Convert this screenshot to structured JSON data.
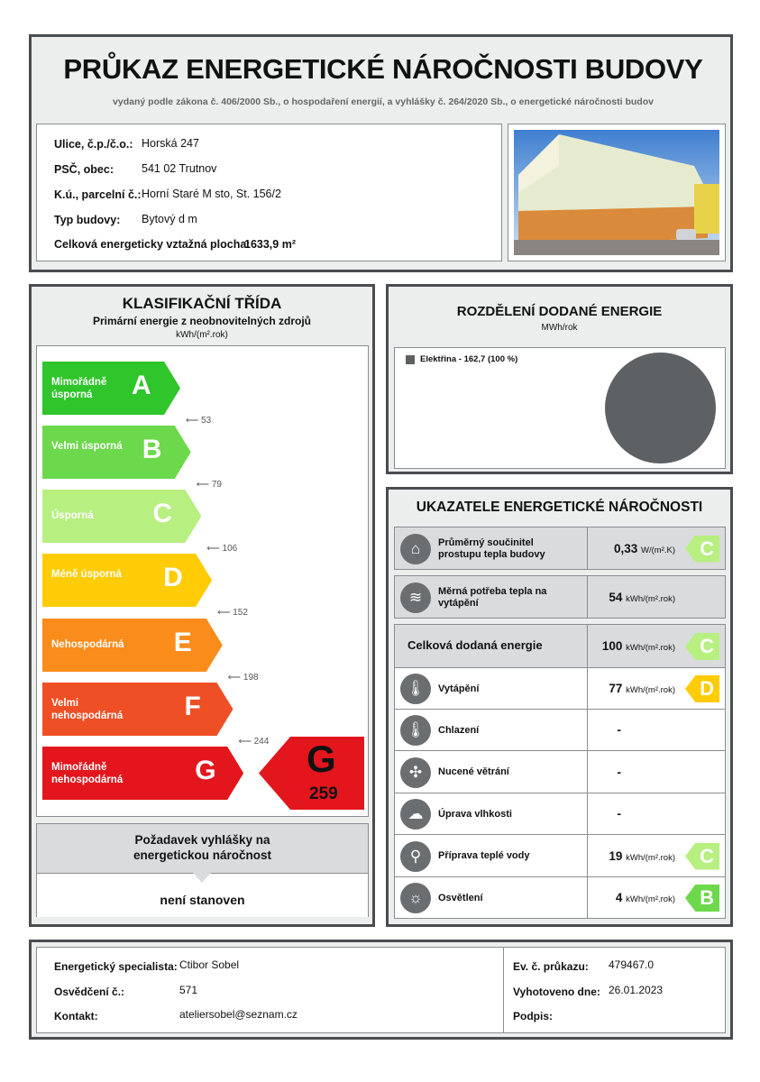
{
  "header": {
    "title": "PRŮKAZ ENERGETICKÉ NÁROČNOSTI BUDOVY",
    "subtitle": "vydaný podle zákona č. 406/2000 Sb., o hospodaření energií, a vyhlášky č. 264/2020 Sb., o energetické náročnosti budov"
  },
  "info": [
    {
      "label": "Ulice, č.p./č.o.:",
      "value": "Horská 247"
    },
    {
      "label": "PSČ, obec:",
      "value": "541 02 Trutnov"
    },
    {
      "label": "K.ú., parcelní č.:",
      "value": "Horní Staré M  sto, St. 156/2"
    },
    {
      "label": "Typ budovy:",
      "value": "Bytový d  m"
    }
  ],
  "area": {
    "label": "Celková energeticky vztažná plocha:",
    "value": "1633,9 m²"
  },
  "classification": {
    "title": "KLASIFIKAČNÍ TŘÍDA",
    "subtitle": "Primární energie z neobnovitelných zdrojů",
    "unit": "kWh/(m².rok)",
    "classes": [
      {
        "letter": "A",
        "label": "Mimořádně úsporná",
        "color": "#2fc52b",
        "threshold": "53"
      },
      {
        "letter": "B",
        "label": "Velmi úsporná",
        "color": "#6cd84b",
        "threshold": "79"
      },
      {
        "letter": "C",
        "label": "Úsporná",
        "color": "#b7ef80",
        "threshold": "106"
      },
      {
        "letter": "D",
        "label": "Méně úsporná",
        "color": "#ffcc05",
        "threshold": "152"
      },
      {
        "letter": "E",
        "label": "Nehospodárná",
        "color": "#fa8c1c",
        "threshold": "198"
      },
      {
        "letter": "F",
        "label": "Velmi nehospodárná",
        "color": "#ef4f25",
        "threshold": "244"
      },
      {
        "letter": "G",
        "label": "Mimořádně nehospodárná",
        "color": "#e3161d"
      }
    ],
    "result": {
      "letter": "G",
      "value": "259"
    }
  },
  "requirement": {
    "title": "Požadavek vyhlášky na energetickou náročnost",
    "value": "není stanoven"
  },
  "distribution": {
    "title": "ROZDĚLENÍ DODANÉ ENERGIE",
    "unit": "MWh/rok",
    "legend": "Elektřina - 162,7 (100 %)",
    "color": "#5e6163"
  },
  "indicators": {
    "title": "UKAZATELE ENERGETICKÉ NÁROČNOSTI",
    "rows": [
      {
        "icon": "house-icon",
        "label": "Průměrný součinitel prostupu tepla budovy",
        "value": "0,33",
        "unit": "W/(m².K)",
        "class": "C",
        "color": "#b7ef80"
      },
      {
        "icon": "heat-thermometer-icon",
        "label": "Měrná potřeba tepla na vytápění",
        "value": "54",
        "unit": "kWh/(m².rok)"
      },
      {
        "label": "Celková dodaná energie",
        "value": "100",
        "unit": "kWh/(m².rok)",
        "class": "C",
        "color": "#b7ef80"
      },
      {
        "icon": "heating-icon",
        "label": "Vytápění",
        "value": "77",
        "unit": "kWh/(m².rok)",
        "class": "D",
        "color": "#ffcc05"
      },
      {
        "icon": "cooling-icon",
        "label": "Chlazení",
        "value": "-"
      },
      {
        "icon": "fan-icon",
        "label": "Nucené větrání",
        "value": "-"
      },
      {
        "icon": "humidity-icon",
        "label": "Úprava vlhkosti",
        "value": "-"
      },
      {
        "icon": "tap-icon",
        "label": "Příprava teplé vody",
        "value": "19",
        "unit": "kWh/(m².rok)",
        "class": "C",
        "color": "#b7ef80"
      },
      {
        "icon": "bulb-icon",
        "label": "Osvětlení",
        "value": "4",
        "unit": "kWh/(m².rok)",
        "class": "B",
        "color": "#6cd84b"
      }
    ]
  },
  "footer": {
    "specialist_label": "Energetický specialista:",
    "specialist": "Ctibor Sobel",
    "cert_label": "Osvědčení č.:",
    "cert": "571",
    "contact_label": "Kontakt:",
    "contact": "ateliersobel@seznam.cz",
    "ev_label": "Ev. č. průkazu:",
    "ev": "479467.0",
    "date_label": "Vyhotoveno dne:",
    "date": "26.01.2023",
    "sign_label": "Podpis:"
  }
}
